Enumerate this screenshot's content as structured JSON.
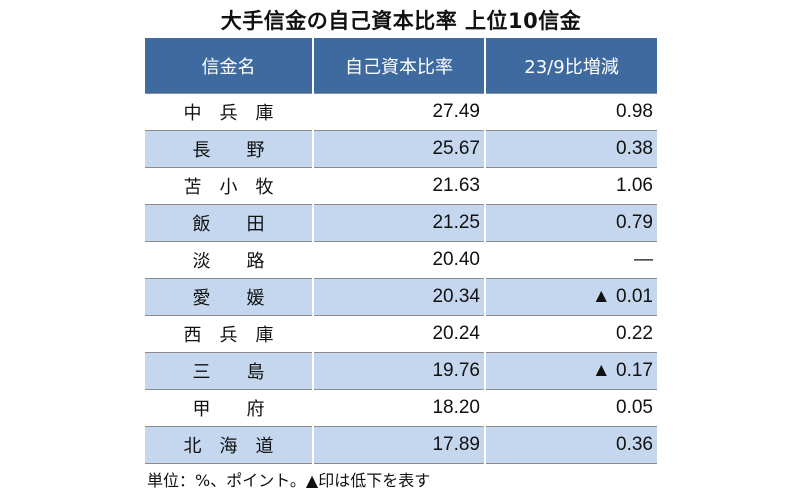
{
  "title": "大手信金の自己資本比率 上位10信金",
  "columns": {
    "name": "信金名",
    "ratio": "自己資本比率",
    "change": "23/9比増減"
  },
  "rows": [
    {
      "name": "中　兵　庫",
      "ratio": "27.49",
      "change": "0.98"
    },
    {
      "name": "長　　野",
      "ratio": "25.67",
      "change": "0.38"
    },
    {
      "name": "苫　小　牧",
      "ratio": "21.63",
      "change": "1.06"
    },
    {
      "name": "飯　　田",
      "ratio": "21.25",
      "change": "0.79"
    },
    {
      "name": "淡　　路",
      "ratio": "20.40",
      "change": "―"
    },
    {
      "name": "愛　　媛",
      "ratio": "20.34",
      "change": "▲ 0.01"
    },
    {
      "name": "西　兵　庫",
      "ratio": "20.24",
      "change": "0.22"
    },
    {
      "name": "三　　島",
      "ratio": "19.76",
      "change": "▲ 0.17"
    },
    {
      "name": "甲　　府",
      "ratio": "18.20",
      "change": "0.05"
    },
    {
      "name": "北　海　道",
      "ratio": "17.89",
      "change": "0.36"
    }
  ],
  "note": "単位：%、ポイント。▲印は低下を表す",
  "colors": {
    "header_bg": "#3f6aa0",
    "header_text": "#ffffff",
    "stripe_bg": "#c5d7ee"
  }
}
